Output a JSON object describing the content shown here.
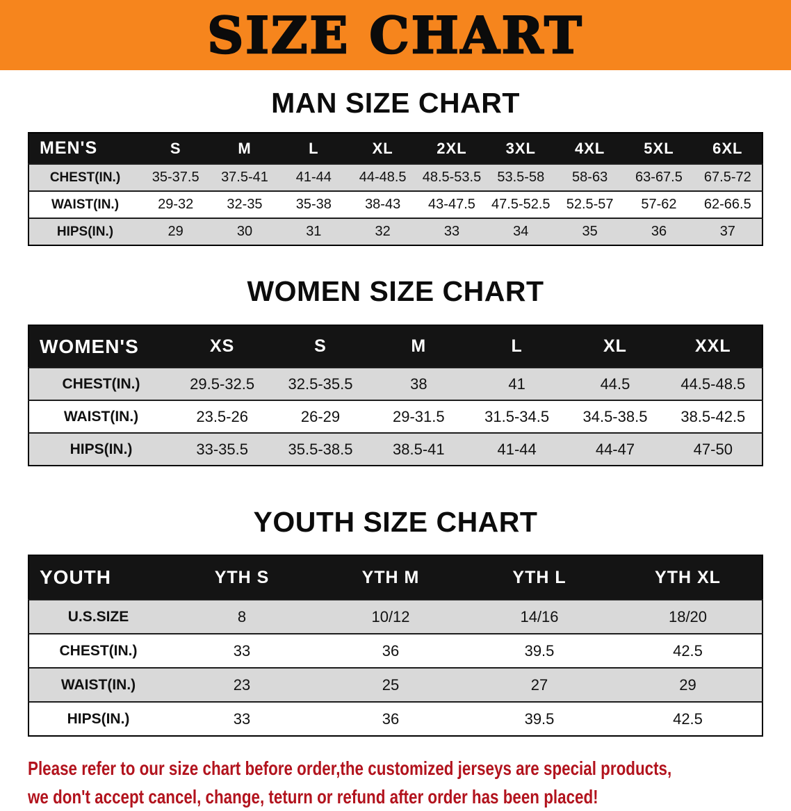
{
  "banner": {
    "title": "SIZE CHART"
  },
  "colors": {
    "banner_bg": "#F6851D",
    "header_bg": "#141414",
    "row_shade": "#D9D9D9",
    "footer_text": "#B2131D"
  },
  "men": {
    "heading": "MAN SIZE CHART",
    "header": [
      "MEN'S",
      "S",
      "M",
      "L",
      "XL",
      "2XL",
      "3XL",
      "4XL",
      "5XL",
      "6XL"
    ],
    "rows": [
      [
        "CHEST(IN.)",
        "35-37.5",
        "37.5-41",
        "41-44",
        "44-48.5",
        "48.5-53.5",
        "53.5-58",
        "58-63",
        "63-67.5",
        "67.5-72"
      ],
      [
        "WAIST(IN.)",
        "29-32",
        "32-35",
        "35-38",
        "38-43",
        "43-47.5",
        "47.5-52.5",
        "52.5-57",
        "57-62",
        "62-66.5"
      ],
      [
        "HIPS(IN.)",
        "29",
        "30",
        "31",
        "32",
        "33",
        "34",
        "35",
        "36",
        "37"
      ]
    ]
  },
  "women": {
    "heading": "WOMEN SIZE CHART",
    "header": [
      "WOMEN'S",
      "XS",
      "S",
      "M",
      "L",
      "XL",
      "XXL"
    ],
    "rows": [
      [
        "CHEST(IN.)",
        "29.5-32.5",
        "32.5-35.5",
        "38",
        "41",
        "44.5",
        "44.5-48.5"
      ],
      [
        "WAIST(IN.)",
        "23.5-26",
        "26-29",
        "29-31.5",
        "31.5-34.5",
        "34.5-38.5",
        "38.5-42.5"
      ],
      [
        "HIPS(IN.)",
        "33-35.5",
        "35.5-38.5",
        "38.5-41",
        "41-44",
        "44-47",
        "47-50"
      ]
    ]
  },
  "youth": {
    "heading": "YOUTH SIZE CHART",
    "header": [
      "YOUTH",
      "YTH S",
      "YTH M",
      "YTH L",
      "YTH XL"
    ],
    "rows": [
      [
        "U.S.SIZE",
        "8",
        "10/12",
        "14/16",
        "18/20"
      ],
      [
        "CHEST(IN.)",
        "33",
        "36",
        "39.5",
        "42.5"
      ],
      [
        "WAIST(IN.)",
        "23",
        "25",
        "27",
        "29"
      ],
      [
        "HIPS(IN.)",
        "33",
        "36",
        "39.5",
        "42.5"
      ]
    ]
  },
  "footer": {
    "line1": "Please refer to our size chart before order,the customized jerseys are special products,",
    "line2": "we don't accept cancel, change, teturn or refund after order has been placed!"
  }
}
